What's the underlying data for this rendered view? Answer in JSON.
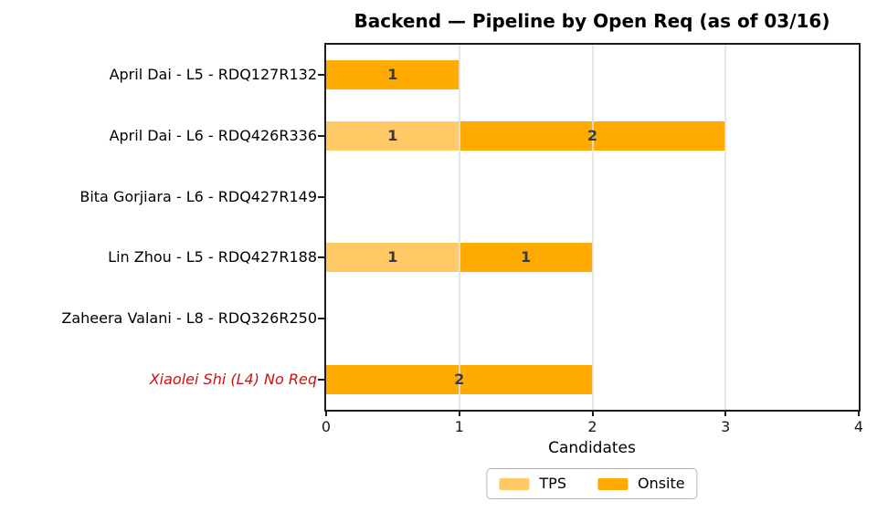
{
  "title": "Backend — Pipeline by Open Req (as of 03/16)",
  "colors": {
    "tps": "#ffc966",
    "onsite": "#ffaa00",
    "bar_label": "#3a3a3a",
    "axis": "#1c1c1c",
    "grid": "#e4e4e4",
    "highlight_label": "#cc1111",
    "label": "#000000",
    "background": "#ffffff",
    "legend_border": "#b5b5b5"
  },
  "chart_data": {
    "type": "bar",
    "orientation": "horizontal",
    "stacked": true,
    "title": "Backend — Pipeline by Open Req (as of 03/16)",
    "xlabel": "Candidates",
    "ylabel": "",
    "xlim": [
      0,
      4
    ],
    "xticks": [
      "0",
      "1",
      "2",
      "3",
      "4"
    ],
    "grid": true,
    "bar_value_labels_visible": true,
    "legend_position": "bottom-center",
    "categories": [
      {
        "label": "April Dai - L5 - RDQ127R132",
        "highlight": false
      },
      {
        "label": "April Dai - L6 - RDQ426R336",
        "highlight": false
      },
      {
        "label": "Bita Gorjiara - L6 - RDQ427R149",
        "highlight": false
      },
      {
        "label": "Lin Zhou - L5 - RDQ427R188",
        "highlight": false
      },
      {
        "label": "Zaheera Valani - L8 - RDQ326R250",
        "highlight": false
      },
      {
        "label": "Xiaolei Shi (L4) No Req",
        "highlight": true
      }
    ],
    "series": [
      {
        "name": "TPS",
        "color_key": "tps",
        "values": [
          0,
          1,
          0,
          1,
          0,
          0
        ]
      },
      {
        "name": "Onsite",
        "color_key": "onsite",
        "values": [
          1,
          2,
          0,
          1,
          0,
          2
        ]
      }
    ]
  }
}
